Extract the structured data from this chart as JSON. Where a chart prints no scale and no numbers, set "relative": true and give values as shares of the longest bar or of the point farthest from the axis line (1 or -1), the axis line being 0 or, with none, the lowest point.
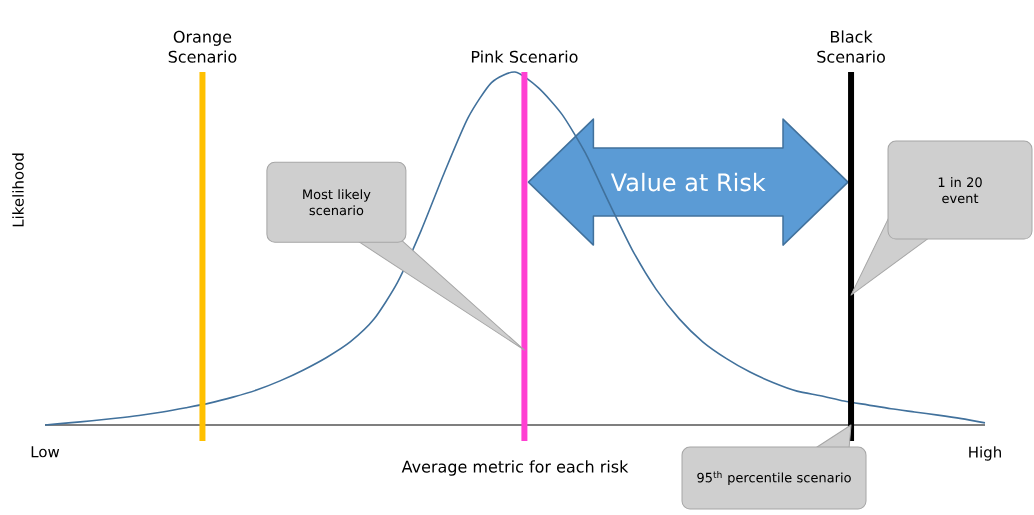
{
  "chart_data": {
    "type": "line",
    "relative": true,
    "xlabel": "Average metric for each risk",
    "ylabel": "Likelihood",
    "categories": [
      "Low",
      null,
      null,
      null,
      null,
      null,
      null,
      null,
      null,
      null,
      null,
      null,
      null,
      null,
      null,
      null,
      null,
      null,
      null,
      null,
      null,
      null,
      null,
      null,
      null,
      null,
      null,
      null,
      null,
      null,
      null,
      null,
      null,
      null,
      null,
      null,
      null,
      null,
      null,
      null,
      "High"
    ],
    "series": [
      {
        "color": "#41719c",
        "values": [
          0,
          0.006,
          0.012,
          0.019,
          0.027,
          0.037,
          0.049,
          0.062,
          0.079,
          0.099,
          0.125,
          0.156,
          0.192,
          0.236,
          0.3,
          0.404,
          0.55,
          0.716,
          0.87,
          0.97,
          1,
          0.955,
          0.88,
          0.77,
          0.63,
          0.495,
          0.385,
          0.3,
          0.235,
          0.188,
          0.15,
          0.12,
          0.096,
          0.083,
          0.068,
          0.057,
          0.046,
          0.037,
          0.028,
          0.018,
          0.006
        ]
      }
    ],
    "annotations": [
      "Orange Scenario",
      "Pink Scenario",
      "Black Scenario",
      "Most likely scenario",
      "1 in 20 event",
      "95$^{th}$ percentile scenario",
      "Value at Risk"
    ]
  }
}
